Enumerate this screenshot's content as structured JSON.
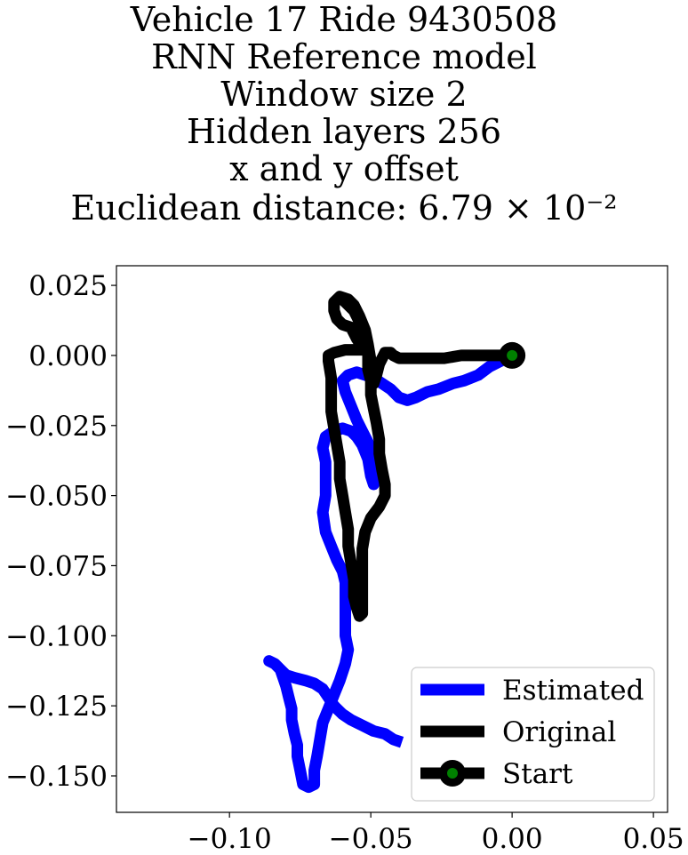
{
  "chart_data": {
    "type": "line",
    "title_lines": [
      "Vehicle 17 Ride 9430508",
      "RNN Reference model",
      "Window size 2",
      "Hidden layers 256",
      "x and y offset",
      "Euclidean distance: 6.79 × 10⁻²"
    ],
    "xlim": [
      -0.14,
      0.055
    ],
    "ylim": [
      -0.163,
      0.032
    ],
    "x_ticks": [
      -0.1,
      -0.05,
      0.0,
      0.05
    ],
    "x_tick_labels": [
      "−0.10",
      "−0.05",
      "0.00",
      "0.05"
    ],
    "y_ticks": [
      0.025,
      0.0,
      -0.025,
      -0.05,
      -0.075,
      -0.1,
      -0.125,
      -0.15
    ],
    "y_tick_labels": [
      "0.025",
      "0.000",
      "−0.025",
      "−0.050",
      "−0.075",
      "−0.100",
      "−0.125",
      "−0.150"
    ],
    "grid": false,
    "legend_position": "lower-right",
    "colors": {
      "estimated": "#0000ff",
      "original": "#000000",
      "start_marker": "#000000",
      "start_center": "#008000"
    },
    "series": [
      {
        "name": "Estimated",
        "points": [
          [
            0.0,
            0.0
          ],
          [
            -0.004,
            -0.002
          ],
          [
            -0.008,
            -0.004
          ],
          [
            -0.012,
            -0.007
          ],
          [
            -0.017,
            -0.009
          ],
          [
            -0.021,
            -0.01
          ],
          [
            -0.026,
            -0.012
          ],
          [
            -0.03,
            -0.013
          ],
          [
            -0.034,
            -0.015
          ],
          [
            -0.037,
            -0.016
          ],
          [
            -0.04,
            -0.015
          ],
          [
            -0.043,
            -0.012
          ],
          [
            -0.046,
            -0.01
          ],
          [
            -0.049,
            -0.008
          ],
          [
            -0.052,
            -0.007
          ],
          [
            -0.055,
            -0.006
          ],
          [
            -0.058,
            -0.007
          ],
          [
            -0.06,
            -0.009
          ],
          [
            -0.059,
            -0.013
          ],
          [
            -0.057,
            -0.018
          ],
          [
            -0.055,
            -0.023
          ],
          [
            -0.053,
            -0.027
          ],
          [
            -0.051,
            -0.031
          ],
          [
            -0.05,
            -0.034
          ],
          [
            -0.049,
            -0.037
          ],
          [
            -0.048,
            -0.04
          ],
          [
            -0.048,
            -0.044
          ],
          [
            -0.049,
            -0.046
          ],
          [
            -0.05,
            -0.043
          ],
          [
            -0.051,
            -0.037
          ],
          [
            -0.053,
            -0.032
          ],
          [
            -0.055,
            -0.029
          ],
          [
            -0.057,
            -0.027
          ],
          [
            -0.06,
            -0.026
          ],
          [
            -0.063,
            -0.027
          ],
          [
            -0.066,
            -0.029
          ],
          [
            -0.067,
            -0.033
          ],
          [
            -0.066,
            -0.038
          ],
          [
            -0.066,
            -0.043
          ],
          [
            -0.066,
            -0.05
          ],
          [
            -0.067,
            -0.056
          ],
          [
            -0.066,
            -0.063
          ],
          [
            -0.064,
            -0.068
          ],
          [
            -0.062,
            -0.073
          ],
          [
            -0.06,
            -0.077
          ],
          [
            -0.059,
            -0.081
          ],
          [
            -0.059,
            -0.088
          ],
          [
            -0.059,
            -0.095
          ],
          [
            -0.059,
            -0.1
          ],
          [
            -0.058,
            -0.105
          ],
          [
            -0.059,
            -0.11
          ],
          [
            -0.061,
            -0.116
          ],
          [
            -0.063,
            -0.121
          ],
          [
            -0.065,
            -0.126
          ],
          [
            -0.067,
            -0.131
          ],
          [
            -0.068,
            -0.137
          ],
          [
            -0.069,
            -0.143
          ],
          [
            -0.07,
            -0.148
          ],
          [
            -0.07,
            -0.153
          ],
          [
            -0.072,
            -0.154
          ],
          [
            -0.074,
            -0.153
          ],
          [
            -0.075,
            -0.148
          ],
          [
            -0.076,
            -0.143
          ],
          [
            -0.076,
            -0.139
          ],
          [
            -0.077,
            -0.135
          ],
          [
            -0.078,
            -0.13
          ],
          [
            -0.078,
            -0.126
          ],
          [
            -0.079,
            -0.122
          ],
          [
            -0.08,
            -0.118
          ],
          [
            -0.081,
            -0.115
          ],
          [
            -0.082,
            -0.112
          ],
          [
            -0.084,
            -0.11
          ],
          [
            -0.086,
            -0.109
          ],
          [
            -0.084,
            -0.11
          ],
          [
            -0.082,
            -0.112
          ],
          [
            -0.08,
            -0.114
          ],
          [
            -0.077,
            -0.115
          ],
          [
            -0.073,
            -0.116
          ],
          [
            -0.07,
            -0.117
          ],
          [
            -0.067,
            -0.119
          ],
          [
            -0.065,
            -0.122
          ],
          [
            -0.063,
            -0.125
          ],
          [
            -0.06,
            -0.128
          ],
          [
            -0.057,
            -0.13
          ],
          [
            -0.053,
            -0.132
          ],
          [
            -0.049,
            -0.134
          ],
          [
            -0.045,
            -0.135
          ],
          [
            -0.042,
            -0.137
          ],
          [
            -0.039,
            -0.138
          ]
        ]
      },
      {
        "name": "Original",
        "points": [
          [
            0.0,
            0.0
          ],
          [
            -0.006,
            0.0
          ],
          [
            -0.012,
            0.0
          ],
          [
            -0.018,
            0.0
          ],
          [
            -0.024,
            -0.001
          ],
          [
            -0.03,
            -0.001
          ],
          [
            -0.036,
            -0.001
          ],
          [
            -0.04,
            -0.001
          ],
          [
            -0.042,
            0.0
          ],
          [
            -0.043,
            0.001
          ],
          [
            -0.045,
            0.001
          ],
          [
            -0.047,
            -0.003
          ],
          [
            -0.048,
            -0.007
          ],
          [
            -0.049,
            -0.01
          ],
          [
            -0.05,
            -0.007
          ],
          [
            -0.05,
            -0.002
          ],
          [
            -0.051,
            0.004
          ],
          [
            -0.052,
            0.009
          ],
          [
            -0.054,
            0.014
          ],
          [
            -0.056,
            0.018
          ],
          [
            -0.058,
            0.02
          ],
          [
            -0.061,
            0.021
          ],
          [
            -0.063,
            0.019
          ],
          [
            -0.063,
            0.016
          ],
          [
            -0.062,
            0.013
          ],
          [
            -0.06,
            0.011
          ],
          [
            -0.057,
            0.01
          ],
          [
            -0.055,
            0.006
          ],
          [
            -0.053,
            0.003
          ],
          [
            -0.052,
            0.002
          ],
          [
            -0.055,
            0.002
          ],
          [
            -0.059,
            0.002
          ],
          [
            -0.063,
            0.001
          ],
          [
            -0.065,
            0.0
          ],
          [
            -0.065,
            -0.002
          ],
          [
            -0.064,
            -0.008
          ],
          [
            -0.064,
            -0.014
          ],
          [
            -0.064,
            -0.02
          ],
          [
            -0.063,
            -0.026
          ],
          [
            -0.062,
            -0.032
          ],
          [
            -0.061,
            -0.038
          ],
          [
            -0.061,
            -0.044
          ],
          [
            -0.06,
            -0.05
          ],
          [
            -0.059,
            -0.056
          ],
          [
            -0.058,
            -0.062
          ],
          [
            -0.058,
            -0.068
          ],
          [
            -0.057,
            -0.074
          ],
          [
            -0.056,
            -0.08
          ],
          [
            -0.056,
            -0.086
          ],
          [
            -0.055,
            -0.09
          ],
          [
            -0.054,
            -0.093
          ],
          [
            -0.053,
            -0.092
          ],
          [
            -0.053,
            -0.086
          ],
          [
            -0.053,
            -0.08
          ],
          [
            -0.053,
            -0.074
          ],
          [
            -0.053,
            -0.069
          ],
          [
            -0.052,
            -0.063
          ],
          [
            -0.05,
            -0.058
          ],
          [
            -0.047,
            -0.054
          ],
          [
            -0.045,
            -0.05
          ],
          [
            -0.045,
            -0.046
          ],
          [
            -0.046,
            -0.041
          ],
          [
            -0.047,
            -0.035
          ],
          [
            -0.047,
            -0.03
          ],
          [
            -0.048,
            -0.024
          ],
          [
            -0.049,
            -0.019
          ],
          [
            -0.05,
            -0.014
          ],
          [
            -0.05,
            -0.009
          ],
          [
            -0.051,
            -0.005
          ],
          [
            -0.051,
            0.0
          ],
          [
            -0.051,
            0.004
          ],
          [
            -0.052,
            0.008
          ],
          [
            -0.054,
            0.012
          ],
          [
            -0.056,
            0.016
          ],
          [
            -0.059,
            0.019
          ],
          [
            -0.061,
            0.021
          ]
        ]
      },
      {
        "name": "Start",
        "points": [
          [
            0.0,
            0.0
          ]
        ]
      }
    ],
    "legend": [
      "Estimated",
      "Original",
      "Start"
    ]
  }
}
